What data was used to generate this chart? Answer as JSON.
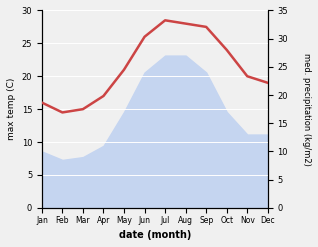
{
  "months": [
    "Jan",
    "Feb",
    "Mar",
    "Apr",
    "May",
    "Jun",
    "Jul",
    "Aug",
    "Sep",
    "Oct",
    "Nov",
    "Dec"
  ],
  "max_temp": [
    16,
    14.5,
    15,
    17,
    21,
    26,
    28.5,
    28,
    27.5,
    24,
    20,
    19
  ],
  "precipitation": [
    10,
    8.5,
    9,
    11,
    17,
    24,
    27,
    27,
    24,
    17,
    13,
    13
  ],
  "temp_color": "#cc4444",
  "precip_fill_color": "#c5d5f0",
  "temp_ylim": [
    0,
    30
  ],
  "precip_ylim": [
    0,
    35
  ],
  "temp_yticks": [
    0,
    5,
    10,
    15,
    20,
    25,
    30
  ],
  "precip_yticks": [
    0,
    5,
    10,
    15,
    20,
    25,
    30,
    35
  ],
  "xlabel": "date (month)",
  "ylabel_left": "max temp (C)",
  "ylabel_right": "med. precipitation (kg/m2)",
  "background_color": "#f0f0f0"
}
